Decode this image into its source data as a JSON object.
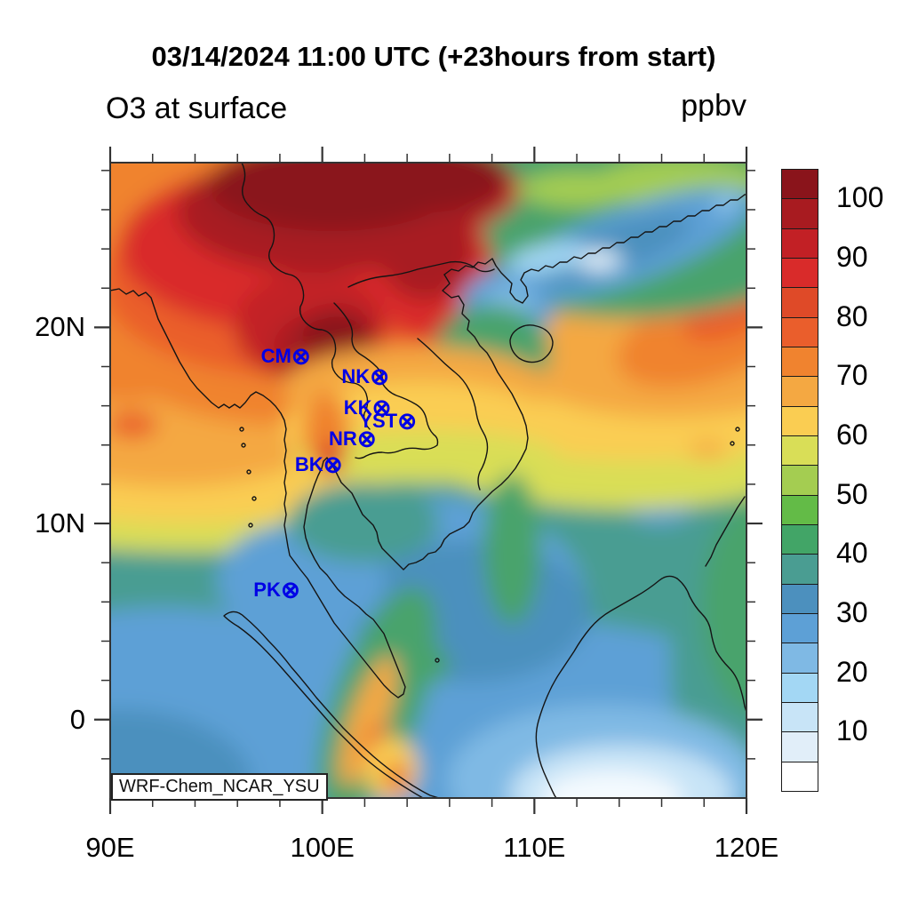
{
  "header": {
    "title": "03/14/2024 11:00 UTC (+23hours from start)",
    "subtitle_left": "O3 at surface",
    "units_label": "ppbv"
  },
  "chart_data": {
    "type": "heatmap",
    "title": "03/14/2024 11:00 UTC (+23hours from start)",
    "variable_label": "O3 at surface",
    "units": "ppbv",
    "model_label": "WRF-Chem_NCAR_YSU",
    "x_axis": {
      "range": [
        90,
        120
      ],
      "major_ticks": [
        {
          "value": 90,
          "label": "90E"
        },
        {
          "value": 100,
          "label": "100E"
        },
        {
          "value": 110,
          "label": "110E"
        },
        {
          "value": 120,
          "label": "120E"
        }
      ],
      "minor_tick_step": 2
    },
    "y_axis": {
      "range": [
        -4,
        28.4
      ],
      "major_ticks": [
        {
          "value": 0,
          "label": "0"
        },
        {
          "value": 10,
          "label": "10N"
        },
        {
          "value": 20,
          "label": "20N"
        }
      ],
      "minor_tick_step": 2
    },
    "colorbar": {
      "min": 0,
      "max": 105,
      "cell_step": 5,
      "label_values": [
        10,
        20,
        30,
        40,
        50,
        60,
        70,
        80,
        90,
        100
      ],
      "colors_bottom_to_top": [
        "#FFFFFF",
        "#E1EEF9",
        "#C8E4F7",
        "#A3D7F4",
        "#7FB9E4",
        "#5DA0D6",
        "#4C90BE",
        "#4A9D92",
        "#42A567",
        "#63BB47",
        "#A4CD51",
        "#D9DE57",
        "#FACD52",
        "#F4A842",
        "#F0832F",
        "#EA5E2C",
        "#DF4A28",
        "#D92B2A",
        "#C22025",
        "#A81B20",
        "#8A141B"
      ]
    },
    "station_color": "#0000E6",
    "station_marker": "⊗",
    "stations": [
      {
        "id": "CM",
        "lon": 99.0,
        "lat": 18.5
      },
      {
        "id": "NK",
        "lon": 102.7,
        "lat": 17.5
      },
      {
        "id": "KK",
        "lon": 102.8,
        "lat": 15.9
      },
      {
        "id": "YST",
        "lon": 104.0,
        "lat": 15.2
      },
      {
        "id": "NR",
        "lon": 102.1,
        "lat": 14.3
      },
      {
        "id": "BK",
        "lon": 100.5,
        "lat": 13.0
      },
      {
        "id": "PK",
        "lon": 98.5,
        "lat": 6.6
      }
    ]
  }
}
